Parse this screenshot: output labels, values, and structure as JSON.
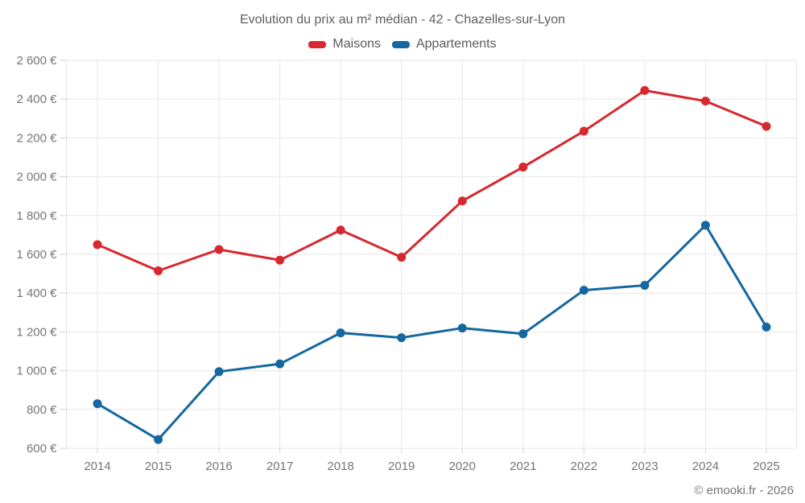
{
  "title": "Evolution du prix au m² médian - 42 - Chazelles-sur-Lyon",
  "footer": {
    "copyright": "© emooki.fr - 2026"
  },
  "colors": {
    "maisons": "#d7282f",
    "appartements": "#1467a0",
    "grid": "#e7e7e7",
    "tick": "#cfcfcf",
    "axis_text": "#757575",
    "title_text": "#5f5f5f"
  },
  "chart_data": {
    "type": "line",
    "title": "Evolution du prix au m² médian - 42 - Chazelles-sur-Lyon",
    "categories": [
      "2014",
      "2015",
      "2016",
      "2017",
      "2018",
      "2019",
      "2020",
      "2021",
      "2022",
      "2023",
      "2024",
      "2025"
    ],
    "series": [
      {
        "name": "Maisons",
        "color": "#d7282f",
        "values": [
          1650,
          1515,
          1625,
          1570,
          1725,
          1585,
          1875,
          2050,
          2235,
          2445,
          2390,
          2260
        ]
      },
      {
        "name": "Appartements",
        "color": "#1467a0",
        "values": [
          830,
          645,
          995,
          1035,
          1195,
          1170,
          1220,
          1190,
          1415,
          1440,
          1750,
          1225
        ]
      }
    ],
    "xlabel": "",
    "ylabel": "",
    "ylim": [
      600,
      2600
    ],
    "ytick_step": 200,
    "ytick_suffix": " €",
    "grid": true,
    "legend_position": "top"
  }
}
